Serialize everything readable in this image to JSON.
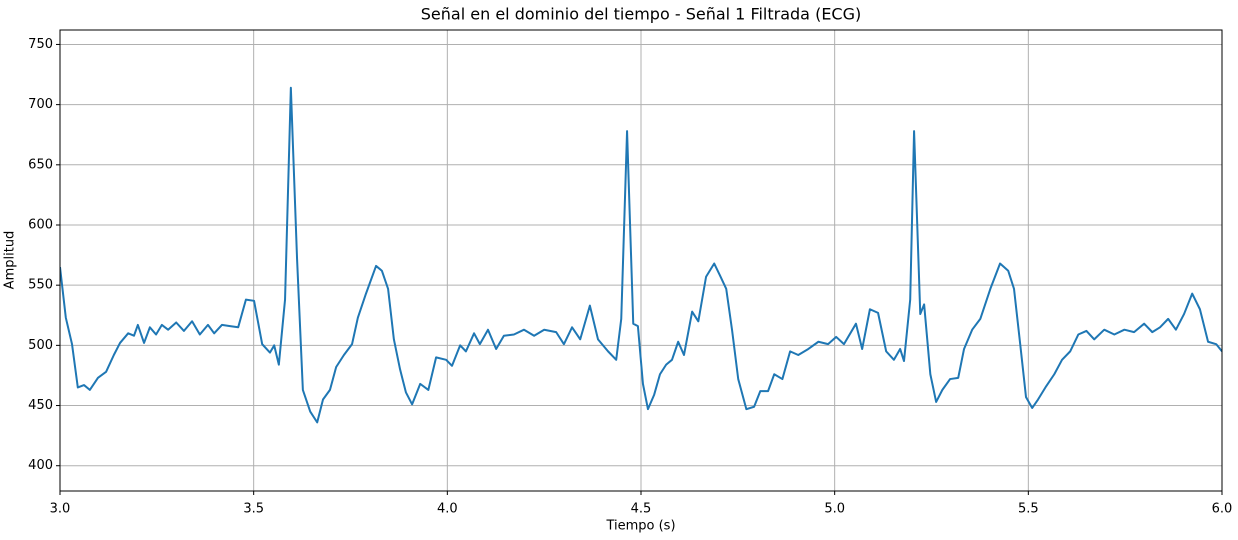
{
  "chart_data": {
    "type": "line",
    "title": "Señal en el dominio del tiempo - Señal 1 Filtrada (ECG)",
    "x_label": "Tiempo (s)",
    "y_label": "Amplitud",
    "xlim": [
      3,
      6
    ],
    "ylim": [
      379,
      762
    ],
    "xticks": [
      {
        "value": 3,
        "label": "3.0"
      },
      {
        "value": 3.5,
        "label": "3.5"
      },
      {
        "value": 4,
        "label": "4.0"
      },
      {
        "value": 4.5,
        "label": "4.5"
      },
      {
        "value": 5,
        "label": "5.0"
      },
      {
        "value": 5.5,
        "label": "5.5"
      },
      {
        "value": 6,
        "label": "6.0"
      }
    ],
    "yticks": [
      400,
      450,
      500,
      550,
      600,
      650,
      700,
      750
    ],
    "grid": true,
    "x": [
      3.0,
      3.015,
      3.031,
      3.046,
      3.062,
      3.077,
      3.098,
      3.119,
      3.139,
      3.155,
      3.176,
      3.191,
      3.201,
      3.217,
      3.232,
      3.248,
      3.263,
      3.279,
      3.3,
      3.32,
      3.341,
      3.361,
      3.382,
      3.398,
      3.418,
      3.439,
      3.46,
      3.48,
      3.501,
      3.522,
      3.542,
      3.553,
      3.565,
      3.581,
      3.596,
      3.612,
      3.627,
      3.646,
      3.664,
      3.679,
      3.697,
      3.713,
      3.733,
      3.754,
      3.769,
      3.79,
      3.816,
      3.831,
      3.847,
      3.862,
      3.878,
      3.893,
      3.909,
      3.93,
      3.951,
      3.971,
      3.997,
      4.012,
      4.033,
      4.048,
      4.069,
      4.084,
      4.105,
      4.126,
      4.146,
      4.172,
      4.198,
      4.224,
      4.25,
      4.281,
      4.301,
      4.322,
      4.343,
      4.368,
      4.389,
      4.415,
      4.436,
      4.449,
      4.464,
      4.48,
      4.492,
      4.505,
      4.518,
      4.534,
      4.549,
      4.565,
      4.58,
      4.596,
      4.611,
      4.632,
      4.648,
      4.668,
      4.689,
      4.704,
      4.72,
      4.735,
      4.751,
      4.772,
      4.792,
      4.808,
      4.828,
      4.844,
      4.865,
      4.885,
      4.906,
      4.932,
      4.958,
      4.983,
      5.004,
      5.024,
      5.055,
      5.071,
      5.091,
      5.112,
      5.133,
      5.153,
      5.169,
      5.179,
      5.195,
      5.205,
      5.221,
      5.231,
      5.247,
      5.262,
      5.278,
      5.298,
      5.319,
      5.334,
      5.355,
      5.376,
      5.402,
      5.427,
      5.448,
      5.463,
      5.479,
      5.494,
      5.51,
      5.525,
      5.546,
      5.567,
      5.587,
      5.608,
      5.629,
      5.65,
      5.67,
      5.696,
      5.722,
      5.748,
      5.773,
      5.799,
      5.82,
      5.84,
      5.861,
      5.881,
      5.902,
      5.923,
      5.943,
      5.964,
      5.985,
      6.0
    ],
    "series": [
      {
        "name": "Señal 1 Filtrada",
        "color": "#1f77b4",
        "values": [
          565,
          523,
          501,
          465,
          467,
          463,
          473,
          478,
          492,
          502,
          510,
          508,
          517,
          502,
          515,
          509,
          517,
          513,
          519,
          512,
          520,
          509,
          517,
          510,
          517,
          516,
          515,
          538,
          537,
          501,
          494,
          500,
          484,
          538,
          714,
          572,
          463,
          445,
          436,
          455,
          463,
          482,
          492,
          501,
          523,
          543,
          566,
          562,
          547,
          505,
          480,
          461,
          451,
          468,
          463,
          490,
          488,
          483,
          500,
          495,
          510,
          501,
          513,
          497,
          508,
          509,
          513,
          508,
          513,
          511,
          501,
          515,
          505,
          533,
          505,
          495,
          488,
          522,
          678,
          518,
          516,
          468,
          447,
          459,
          476,
          484,
          488,
          503,
          492,
          528,
          520,
          557,
          568,
          558,
          547,
          513,
          472,
          447,
          449,
          462,
          462,
          476,
          472,
          495,
          492,
          497,
          503,
          501,
          507,
          501,
          518,
          497,
          530,
          527,
          495,
          488,
          497,
          487,
          538,
          678,
          526,
          534,
          476,
          453,
          463,
          472,
          473,
          497,
          513,
          522,
          547,
          568,
          562,
          547,
          501,
          457,
          448,
          455,
          466,
          476,
          488,
          495,
          509,
          512,
          505,
          513,
          509,
          513,
          511,
          518,
          511,
          515,
          522,
          513,
          526,
          543,
          530,
          503,
          501,
          495
        ]
      }
    ]
  }
}
